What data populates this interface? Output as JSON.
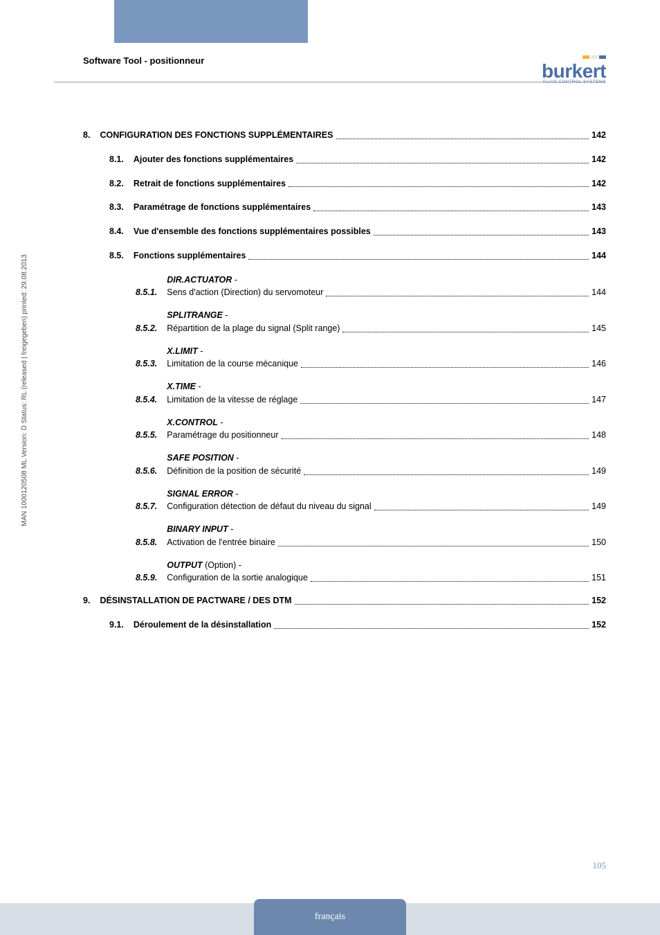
{
  "header": {
    "title": "Software Tool - positionneur",
    "logo_word": "burkert",
    "logo_sub": "FLUID CONTROL SYSTEMS"
  },
  "sideways_text": "MAN 1000120508 ML Version: D Status: RL (released | freigegeben) printed: 29.08.2013",
  "page_number": "105",
  "footer_label": "français",
  "toc": [
    {
      "level": 1,
      "num": "8.",
      "label": "CONFIGURATION DES FONCTIONS SUPPLÉMENTAIRES",
      "page": "142"
    },
    {
      "level": 2,
      "num": "8.1.",
      "label": "Ajouter des fonctions supplémentaires",
      "page": "142"
    },
    {
      "level": 2,
      "num": "8.2.",
      "label": "Retrait de fonctions supplémentaires",
      "page": "142"
    },
    {
      "level": 2,
      "num": "8.3.",
      "label": "Paramétrage de fonctions supplémentaires",
      "page": "143"
    },
    {
      "level": 2,
      "num": "8.4.",
      "label": "Vue d'ensemble des fonctions supplémentaires possibles",
      "page": "143"
    },
    {
      "level": 2,
      "num": "8.5.",
      "label": "Fonctions supplémentaires",
      "page": "144"
    },
    {
      "level": 3,
      "num": "8.5.1.",
      "title": "DIR.ACTUATOR",
      "sub": "Sens d'action (Direction) du servomoteur",
      "page": "144"
    },
    {
      "level": 3,
      "num": "8.5.2.",
      "title": "SPLITRANGE",
      "sub": "Répartition de la plage du signal (Split range)",
      "page": "145"
    },
    {
      "level": 3,
      "num": "8.5.3.",
      "title": "X.LIMIT",
      "sub": "Limitation de la course mécanique",
      "page": "146"
    },
    {
      "level": 3,
      "num": "8.5.4.",
      "title": "X.TIME",
      "sub": "Limitation de la vitesse de réglage",
      "page": "147"
    },
    {
      "level": 3,
      "num": "8.5.5.",
      "title": "X.CONTROL",
      "sub": "Paramétrage du positionneur",
      "page": "148"
    },
    {
      "level": 3,
      "num": "8.5.6.",
      "title": "SAFE POSITION",
      "sub": "Définition de la position de sécurité",
      "page": "149"
    },
    {
      "level": 3,
      "num": "8.5.7.",
      "title": "SIGNAL ERROR",
      "sub": "Configuration détection de défaut du niveau du signal",
      "page": "149"
    },
    {
      "level": 3,
      "num": "8.5.8.",
      "title": "BINARY INPUT",
      "sub": "Activation de l'entrée binaire",
      "page": "150"
    },
    {
      "level": 3,
      "num": "8.5.9.",
      "title": "OUTPUT",
      "title_suffix": " (Option)",
      "sub": "Configuration de la sortie analogique",
      "page": "151"
    },
    {
      "level": 1,
      "num": "9.",
      "label": "DÉSINSTALLATION DE PACTWARE / DES DTM",
      "page": "152"
    },
    {
      "level": 2,
      "num": "9.1.",
      "label": "Déroulement de la désinstallation",
      "page": "152"
    }
  ],
  "colors": {
    "band": "#7a97c0",
    "footer_bar": "#d7dde4",
    "footer_tab": "#6d88af",
    "logo": "#4c6fa5",
    "page_num": "#7a97c0"
  }
}
